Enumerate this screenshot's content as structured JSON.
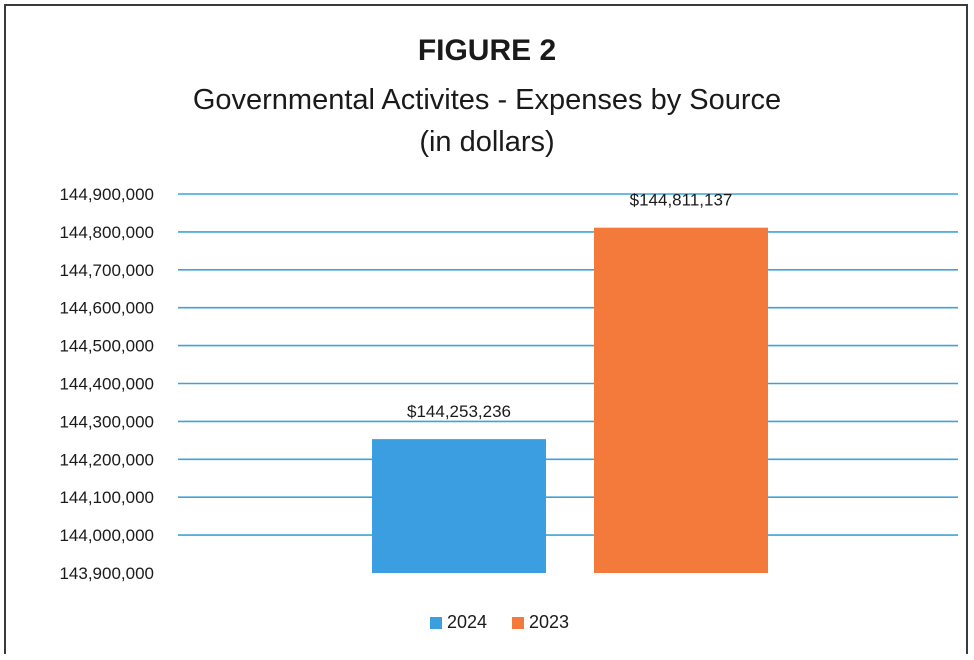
{
  "chart_data": {
    "type": "bar",
    "title": "FIGURE 2",
    "subtitle": "Governmental Activites - Expenses by Source",
    "subtitle2": "(in dollars)",
    "xlabel": "",
    "ylabel": "",
    "ylim": [
      143900000,
      144900000
    ],
    "ytick_step": 100000,
    "ytick_labels": [
      "143,900,000",
      "144,000,000",
      "144,100,000",
      "144,200,000",
      "144,300,000",
      "144,400,000",
      "144,500,000",
      "144,600,000",
      "144,700,000",
      "144,800,000",
      "144,900,000"
    ],
    "grid": true,
    "legend_position": "bottom",
    "series": [
      {
        "name": "2024",
        "value": 144253236,
        "label": "$144,253,236",
        "color": "#3a9ee0"
      },
      {
        "name": "2023",
        "value": 144811137,
        "label": "$144,811,137",
        "color": "#f47a3c"
      }
    ],
    "grid_color": "#3aa6d8"
  }
}
